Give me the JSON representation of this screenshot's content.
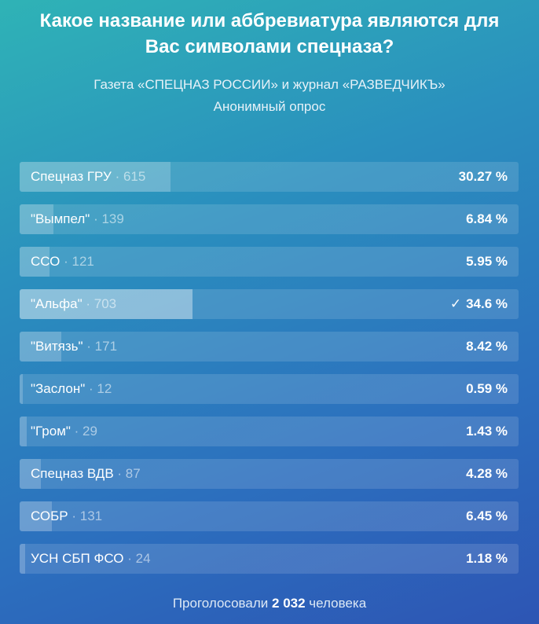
{
  "poll": {
    "title": "Какое название или аббревиатура являются для Вас символами спецназа?",
    "subtitle_line1": "Газета «СПЕЦНАЗ РОССИИ» и журнал «РАЗВЕДЧИКЪ»",
    "subtitle_line2": "Анонимный опрос",
    "options": [
      {
        "label": "Спецназ ГРУ",
        "count": "· 615",
        "percent": "30.27 %",
        "fraction": 0.3027,
        "chosen": false
      },
      {
        "label": "\"Вымпел\"",
        "count": "· 139",
        "percent": "6.84 %",
        "fraction": 0.0684,
        "chosen": false
      },
      {
        "label": "ССО",
        "count": "· 121",
        "percent": "5.95 %",
        "fraction": 0.0595,
        "chosen": false
      },
      {
        "label": "\"Альфа\"",
        "count": "· 703",
        "percent": "34.6 %",
        "fraction": 0.346,
        "chosen": true
      },
      {
        "label": "\"Витязь\"",
        "count": "· 171",
        "percent": "8.42 %",
        "fraction": 0.0842,
        "chosen": false
      },
      {
        "label": "\"Заслон\"",
        "count": "· 12",
        "percent": "0.59 %",
        "fraction": 0.0059,
        "chosen": false
      },
      {
        "label": "\"Гром\"",
        "count": "· 29",
        "percent": "1.43 %",
        "fraction": 0.0143,
        "chosen": false
      },
      {
        "label": "Спецназ ВДВ",
        "count": "· 87",
        "percent": "4.28 %",
        "fraction": 0.0428,
        "chosen": false
      },
      {
        "label": "СОБР",
        "count": "· 131",
        "percent": "6.45 %",
        "fraction": 0.0645,
        "chosen": false
      },
      {
        "label": "УСН СБП ФСО",
        "count": "· 24",
        "percent": "1.18 %",
        "fraction": 0.0118,
        "chosen": false
      }
    ],
    "footer_prefix": "Проголосовали",
    "footer_total": "2 032",
    "footer_suffix": "человека",
    "check_icon": "✓"
  }
}
